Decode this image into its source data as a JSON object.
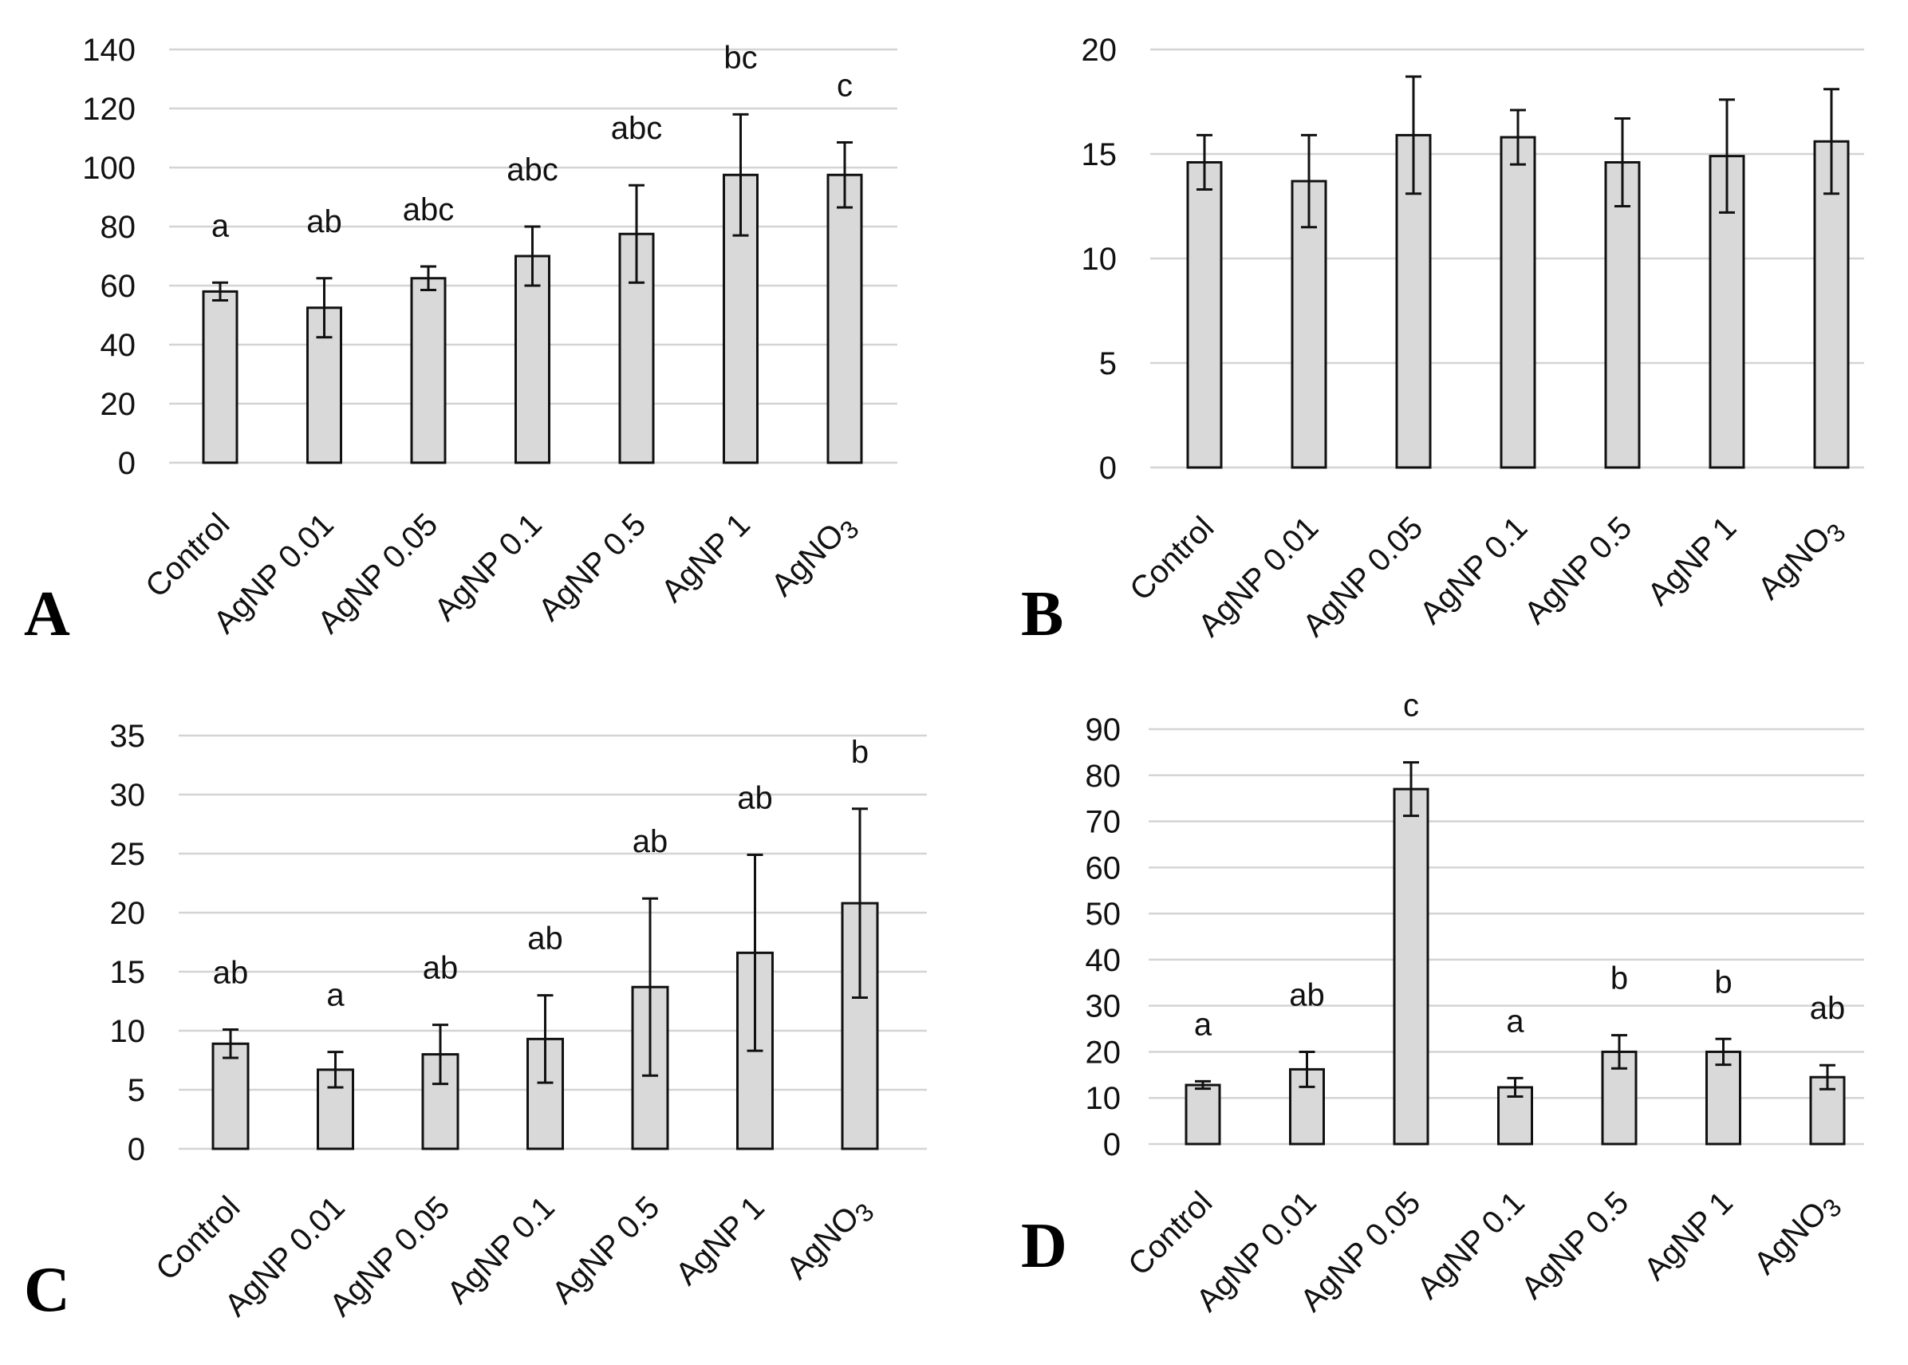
{
  "colors": {
    "bar_fill": "#d9d9d9",
    "bar_stroke": "#111111",
    "grid": "#d4d4d4",
    "text": "#111111"
  },
  "chart_data": [
    {
      "panel": "A",
      "type": "bar",
      "categories": [
        "Control",
        "AgNP 0.01",
        "AgNP 0.05",
        "AgNP 0.1",
        "AgNP 0.5",
        "AgNP 1",
        "AgNO3"
      ],
      "values": [
        58,
        52.5,
        62.5,
        70,
        77.5,
        97.5,
        97.5
      ],
      "errors": [
        3,
        10,
        4,
        10,
        16.5,
        20.5,
        11
      ],
      "significance": [
        "a",
        "ab",
        "abc",
        "abc",
        "abc",
        "bc",
        "c"
      ],
      "yticks": [
        0,
        20,
        40,
        60,
        80,
        100,
        120,
        140
      ],
      "ylim": [
        0,
        140
      ],
      "title": "",
      "xlabel": "",
      "ylabel": ""
    },
    {
      "panel": "B",
      "type": "bar",
      "categories": [
        "Control",
        "AgNP 0.01",
        "AgNP 0.05",
        "AgNP 0.1",
        "AgNP 0.5",
        "AgNP 1",
        "AgNO3"
      ],
      "values": [
        14.6,
        13.7,
        15.9,
        15.8,
        14.6,
        14.9,
        15.6
      ],
      "errors": [
        1.3,
        2.2,
        2.8,
        1.3,
        2.1,
        2.7,
        2.5
      ],
      "significance": [
        "",
        "",
        "",
        "",
        "",
        "",
        ""
      ],
      "yticks": [
        0,
        5,
        10,
        15,
        20
      ],
      "ylim": [
        0,
        20
      ],
      "title": "",
      "xlabel": "",
      "ylabel": ""
    },
    {
      "panel": "C",
      "type": "bar",
      "categories": [
        "Control",
        "AgNP 0.01",
        "AgNP 0.05",
        "AgNP 0.1",
        "AgNP 0.5",
        "AgNP 1",
        "AgNO3"
      ],
      "values": [
        8.9,
        6.7,
        8,
        9.3,
        13.7,
        16.6,
        20.8
      ],
      "errors": [
        1.2,
        1.5,
        2.5,
        3.7,
        7.5,
        8.3,
        8
      ],
      "significance": [
        "ab",
        "a",
        "ab",
        "ab",
        "ab",
        "ab",
        "b"
      ],
      "yticks": [
        0,
        5,
        10,
        15,
        20,
        25,
        30,
        35
      ],
      "ylim": [
        0,
        35
      ],
      "title": "",
      "xlabel": "",
      "ylabel": ""
    },
    {
      "panel": "D",
      "type": "bar",
      "categories": [
        "Control",
        "AgNP 0.01",
        "AgNP 0.05",
        "AgNP 0.1",
        "AgNP 0.5",
        "AgNP 1",
        "AgNO3"
      ],
      "values": [
        12.8,
        16.2,
        77,
        12.3,
        20,
        20,
        14.5
      ],
      "errors": [
        0.8,
        3.8,
        5.8,
        2,
        3.6,
        2.8,
        2.6
      ],
      "significance": [
        "a",
        "ab",
        "c",
        "a",
        "b",
        "b",
        "ab"
      ],
      "yticks": [
        0,
        10,
        20,
        30,
        40,
        50,
        60,
        70,
        80,
        90
      ],
      "ylim": [
        0,
        90
      ],
      "title": "",
      "xlabel": "",
      "ylabel": ""
    }
  ]
}
